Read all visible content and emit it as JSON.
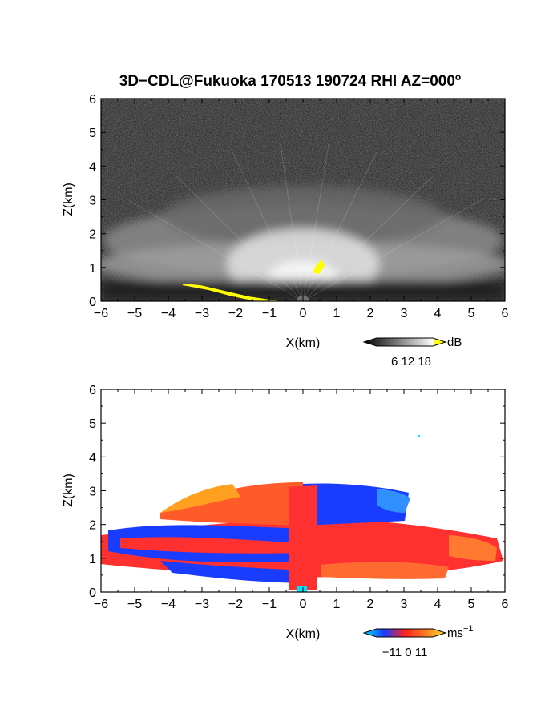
{
  "title": {
    "prefix": "3D−CDL@Fukuoka 170513 190724 RHI AZ=000",
    "suffix": "o"
  },
  "colors": {
    "top_background": "#1c1c1c",
    "bright_echo": "#ffffff",
    "yellow_mask": "#ffff00",
    "ground": "#707070",
    "velocity_negative": "#1a3cff",
    "velocity_zero": "#ff3030",
    "velocity_positive": "#ffb000",
    "cyan": "#00e0ff"
  },
  "chart_data": [
    {
      "type": "heatmap",
      "name": "reflectivity",
      "x_ticks": [
        "−6",
        "−5",
        "−4",
        "−3",
        "−2",
        "−1",
        "0",
        "1",
        "2",
        "3",
        "4",
        "5",
        "6"
      ],
      "y_ticks": [
        "0",
        "1",
        "2",
        "3",
        "4",
        "5",
        "6"
      ],
      "xlabel": "X(km)",
      "ylabel": "Z(km)",
      "xlim": [
        -6,
        6
      ],
      "ylim": [
        0,
        6
      ],
      "colorbar": {
        "unit": "dB",
        "tick_labels": [
          "6",
          "12",
          "18"
        ],
        "tick_values": [
          6,
          12,
          18
        ],
        "range": [
          0,
          21
        ],
        "colormap": "grayscale with yellow above 18"
      },
      "features": {
        "bright_layer_top_km": 1.6,
        "diffuse_layer_top_km": 3.2,
        "bright_core_x_range_km": [
          -1.5,
          1.5
        ],
        "yellow_patch_center": {
          "x": 0.5,
          "z": 1.0
        },
        "yellow_ground_strip_x_range_km": [
          -3.5,
          -0.7
        ]
      }
    },
    {
      "type": "heatmap",
      "name": "doppler_velocity",
      "x_ticks": [
        "−6",
        "−5",
        "−4",
        "−3",
        "−2",
        "−1",
        "0",
        "1",
        "2",
        "3",
        "4",
        "5",
        "6"
      ],
      "y_ticks": [
        "0",
        "1",
        "2",
        "3",
        "4",
        "5",
        "6"
      ],
      "xlabel": "X(km)",
      "ylabel": "Z(km)",
      "xlim": [
        -6,
        6
      ],
      "ylim": [
        0,
        6
      ],
      "colorbar": {
        "unit": "ms",
        "unit_exponent": "−1",
        "tick_labels": [
          "−11",
          "0",
          "11"
        ],
        "tick_values": [
          -11,
          0,
          11
        ],
        "range": [
          -16,
          16
        ],
        "colormap": "cyan-blue (negative) to red (zero) to orange-yellow (positive)"
      },
      "features": {
        "echo_top_km": 3.2,
        "red_band_z_range_km": [
          0.9,
          1.7
        ],
        "blue_band_z_range_km": [
          0.2,
          0.9
        ],
        "upper_red_layer_z_range_km": [
          1.6,
          3.2
        ],
        "upper_blue_core_x_range_km": [
          0.0,
          1.5
        ],
        "isolated_cyan_point": {
          "x": 3.5,
          "z": 4.6
        }
      }
    }
  ],
  "colorbar_ticks_1": "6 12 18",
  "colorbar_ticks_2": "−11 0 11"
}
